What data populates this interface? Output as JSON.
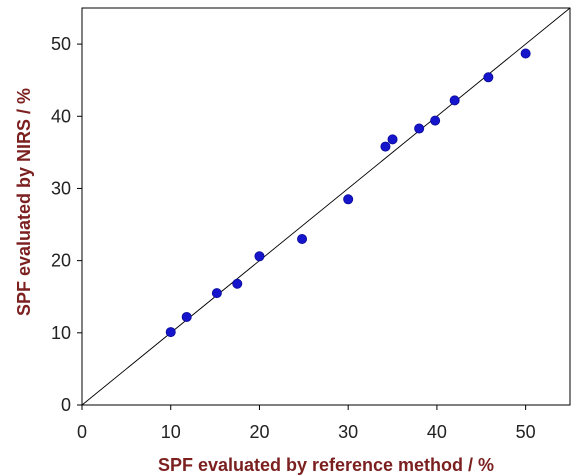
{
  "chart_data": {
    "type": "scatter",
    "title": "",
    "xlabel": "SPF evaluated by reference method / %",
    "ylabel": "SPF evaluated by NIRS / %",
    "xlim": [
      0,
      55
    ],
    "ylim": [
      0,
      55
    ],
    "xticks": [
      "0",
      "10",
      "20",
      "30",
      "40",
      "50"
    ],
    "yticks": [
      "0",
      "10",
      "20",
      "30",
      "40",
      "50"
    ],
    "grid": false,
    "legend": "none",
    "reference_line": {
      "type": "identity",
      "from": [
        0,
        0
      ],
      "to": [
        55,
        55
      ]
    },
    "series": [
      {
        "x": [
          10.0,
          11.8,
          15.2,
          17.5,
          20.0,
          24.8,
          30.0,
          34.2,
          35.0,
          38.0,
          39.8,
          42.0,
          45.8,
          50.0
        ],
        "y": [
          10.1,
          12.2,
          15.5,
          16.8,
          20.6,
          23.0,
          28.5,
          35.8,
          36.8,
          38.3,
          39.4,
          42.2,
          45.4,
          48.7
        ]
      }
    ],
    "colors": {
      "marker": "#1515cc",
      "marker_stroke": "#0b0b99",
      "axis_title": "#7b1f1f",
      "axis": "#000000",
      "reference_line": "#000000"
    }
  }
}
